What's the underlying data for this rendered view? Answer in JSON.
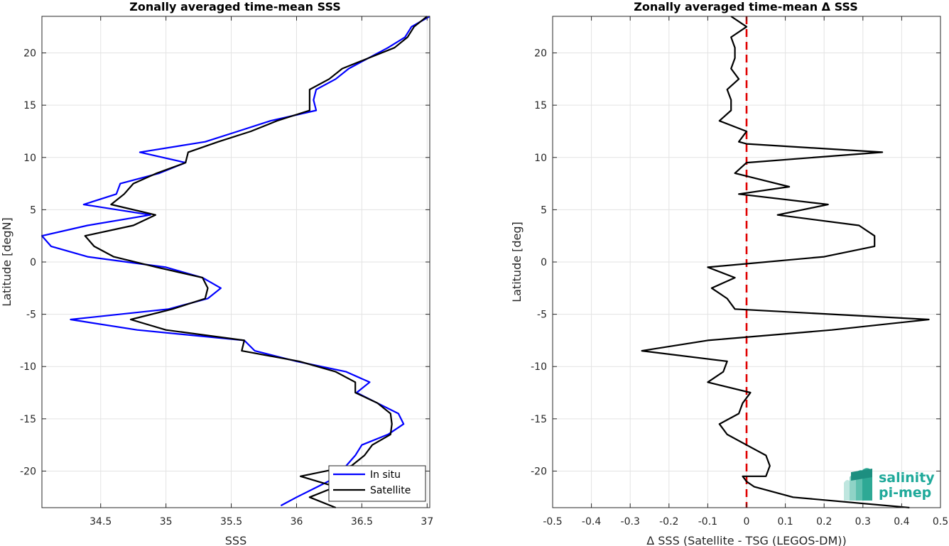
{
  "chart_data": [
    {
      "type": "line",
      "title": "Zonally averaged time-mean SSS",
      "xlabel": "SSS",
      "ylabel": "Latitude [degN]",
      "xlim": [
        34.05,
        37.02
      ],
      "ylim": [
        -23.5,
        23.5
      ],
      "x_ticks": [
        34.5,
        35,
        35.5,
        36,
        36.5,
        37
      ],
      "x_tick_labels": [
        "34.5",
        "35",
        "35.5",
        "36",
        "36.5",
        "37"
      ],
      "y_ticks": [
        -20,
        -15,
        -10,
        -5,
        0,
        5,
        10,
        15,
        20
      ],
      "y_tick_labels": [
        "-20",
        "-15",
        "-10",
        "-5",
        "0",
        "5",
        "10",
        "15",
        "20"
      ],
      "grid": true,
      "legend_placement": "bottom-right",
      "series": [
        {
          "name": "In situ",
          "color": "#0000ff",
          "points": [
            [
              37.02,
              23.5
            ],
            [
              36.88,
              22.5
            ],
            [
              36.83,
              21.5
            ],
            [
              36.7,
              20.5
            ],
            [
              36.55,
              19.5
            ],
            [
              36.4,
              18.5
            ],
            [
              36.3,
              17.5
            ],
            [
              36.15,
              16.5
            ],
            [
              36.13,
              15.5
            ],
            [
              36.15,
              14.5
            ],
            [
              35.8,
              13.5
            ],
            [
              35.55,
              12.5
            ],
            [
              35.3,
              11.5
            ],
            [
              34.8,
              10.5
            ],
            [
              35.15,
              9.5
            ],
            [
              34.95,
              8.5
            ],
            [
              34.65,
              7.5
            ],
            [
              34.62,
              6.5
            ],
            [
              34.37,
              5.5
            ],
            [
              34.88,
              4.5
            ],
            [
              34.4,
              3.5
            ],
            [
              34.05,
              2.5
            ],
            [
              34.12,
              1.5
            ],
            [
              34.4,
              0.5
            ],
            [
              35.0,
              -0.5
            ],
            [
              35.28,
              -1.5
            ],
            [
              35.42,
              -2.5
            ],
            [
              35.32,
              -3.5
            ],
            [
              35.02,
              -4.5
            ],
            [
              34.27,
              -5.5
            ],
            [
              34.78,
              -6.5
            ],
            [
              35.6,
              -7.5
            ],
            [
              35.68,
              -8.5
            ],
            [
              36.0,
              -9.5
            ],
            [
              36.38,
              -10.5
            ],
            [
              36.56,
              -11.5
            ],
            [
              36.46,
              -12.5
            ],
            [
              36.62,
              -13.5
            ],
            [
              36.78,
              -14.5
            ],
            [
              36.82,
              -15.5
            ],
            [
              36.7,
              -16.5
            ],
            [
              36.5,
              -17.5
            ],
            [
              36.45,
              -18.5
            ],
            [
              36.38,
              -19.5
            ],
            [
              36.32,
              -20.5
            ],
            [
              36.16,
              -21.5
            ],
            [
              36.0,
              -22.5
            ],
            [
              35.88,
              -23.3
            ]
          ]
        },
        {
          "name": "Satellite",
          "color": "#000000",
          "points": [
            [
              37.0,
              23.5
            ],
            [
              36.9,
              22.5
            ],
            [
              36.85,
              21.5
            ],
            [
              36.75,
              20.5
            ],
            [
              36.55,
              19.5
            ],
            [
              36.35,
              18.5
            ],
            [
              36.25,
              17.5
            ],
            [
              36.1,
              16.5
            ],
            [
              36.1,
              15.5
            ],
            [
              36.1,
              14.5
            ],
            [
              35.85,
              13.5
            ],
            [
              35.65,
              12.5
            ],
            [
              35.4,
              11.5
            ],
            [
              35.17,
              10.5
            ],
            [
              35.15,
              9.5
            ],
            [
              34.93,
              8.5
            ],
            [
              34.75,
              7.5
            ],
            [
              34.68,
              6.5
            ],
            [
              34.58,
              5.5
            ],
            [
              34.92,
              4.5
            ],
            [
              34.75,
              3.5
            ],
            [
              34.38,
              2.5
            ],
            [
              34.45,
              1.5
            ],
            [
              34.6,
              0.5
            ],
            [
              34.93,
              -0.5
            ],
            [
              35.28,
              -1.5
            ],
            [
              35.32,
              -2.5
            ],
            [
              35.3,
              -3.5
            ],
            [
              35.05,
              -4.5
            ],
            [
              34.73,
              -5.5
            ],
            [
              35.0,
              -6.5
            ],
            [
              35.6,
              -7.5
            ],
            [
              35.58,
              -8.5
            ],
            [
              36.02,
              -9.5
            ],
            [
              36.3,
              -10.5
            ],
            [
              36.45,
              -11.5
            ],
            [
              36.45,
              -12.5
            ],
            [
              36.62,
              -13.5
            ],
            [
              36.72,
              -14.5
            ],
            [
              36.73,
              -15.5
            ],
            [
              36.72,
              -16.5
            ],
            [
              36.58,
              -17.5
            ],
            [
              36.52,
              -18.5
            ],
            [
              36.42,
              -19.5
            ],
            [
              36.03,
              -20.5
            ],
            [
              36.3,
              -21.5
            ],
            [
              36.1,
              -22.5
            ],
            [
              36.3,
              -23.5
            ]
          ]
        }
      ]
    },
    {
      "type": "line",
      "title": "Zonally averaged time-mean Δ SSS",
      "xlabel": "Δ SSS (Satellite - TSG (LEGOS-DM))",
      "ylabel": "Latitude [deg]",
      "xlim": [
        -0.5,
        0.5
      ],
      "ylim": [
        -23.5,
        23.5
      ],
      "x_ticks": [
        -0.5,
        -0.4,
        -0.3,
        -0.2,
        -0.1,
        0,
        0.1,
        0.2,
        0.3,
        0.4,
        0.5
      ],
      "x_tick_labels": [
        "-0.5",
        "-0.4",
        "-0.3",
        "-0.2",
        "-0.1",
        "0",
        "0.1",
        "0.2",
        "0.3",
        "0.4",
        "0.5"
      ],
      "y_ticks": [
        -20,
        -15,
        -10,
        -5,
        0,
        5,
        10,
        15,
        20
      ],
      "y_tick_labels": [
        "-20",
        "-15",
        "-10",
        "-5",
        "0",
        "5",
        "10",
        "15",
        "20"
      ],
      "grid": true,
      "reference_line": {
        "x": 0,
        "color": "#e00000",
        "style": "dashed"
      },
      "series": [
        {
          "color": "#000000",
          "points": [
            [
              -0.04,
              23.5
            ],
            [
              0.0,
              22.5
            ],
            [
              -0.04,
              21.5
            ],
            [
              -0.03,
              20.5
            ],
            [
              -0.03,
              19.5
            ],
            [
              -0.04,
              18.5
            ],
            [
              -0.02,
              17.5
            ],
            [
              -0.05,
              16.5
            ],
            [
              -0.04,
              15.5
            ],
            [
              -0.04,
              14.5
            ],
            [
              -0.07,
              13.5
            ],
            [
              0.0,
              12.5
            ],
            [
              -0.02,
              11.5
            ],
            [
              0.0,
              11.3
            ],
            [
              0.35,
              10.5
            ],
            [
              0.0,
              9.5
            ],
            [
              -0.03,
              8.5
            ],
            [
              0.11,
              7.2
            ],
            [
              -0.02,
              6.5
            ],
            [
              0.21,
              5.5
            ],
            [
              0.08,
              4.5
            ],
            [
              0.29,
              3.5
            ],
            [
              0.33,
              2.5
            ],
            [
              0.33,
              1.5
            ],
            [
              0.2,
              0.5
            ],
            [
              -0.1,
              -0.5
            ],
            [
              -0.03,
              -1.5
            ],
            [
              -0.09,
              -2.5
            ],
            [
              -0.05,
              -3.5
            ],
            [
              -0.03,
              -4.5
            ],
            [
              0.47,
              -5.5
            ],
            [
              0.22,
              -6.5
            ],
            [
              -0.1,
              -7.5
            ],
            [
              -0.27,
              -8.5
            ],
            [
              -0.05,
              -9.5
            ],
            [
              -0.06,
              -10.5
            ],
            [
              -0.1,
              -11.5
            ],
            [
              0.01,
              -12.5
            ],
            [
              -0.01,
              -13.5
            ],
            [
              -0.02,
              -14.5
            ],
            [
              -0.07,
              -15.5
            ],
            [
              -0.05,
              -16.5
            ],
            [
              0.0,
              -17.5
            ],
            [
              0.05,
              -18.5
            ],
            [
              0.06,
              -19.5
            ],
            [
              0.05,
              -20.5
            ],
            [
              -0.01,
              -20.5
            ],
            [
              0.0,
              -21.0
            ],
            [
              0.02,
              -21.5
            ],
            [
              0.12,
              -22.5
            ],
            [
              0.42,
              -23.5
            ]
          ]
        }
      ]
    }
  ],
  "legend": {
    "items": [
      {
        "label": "In situ",
        "color": "#0000ff"
      },
      {
        "label": "Satellite",
        "color": "#000000"
      }
    ]
  },
  "logo": {
    "line1": "salinity",
    "line2": "pi-mep",
    "color": "#1fa99a"
  }
}
